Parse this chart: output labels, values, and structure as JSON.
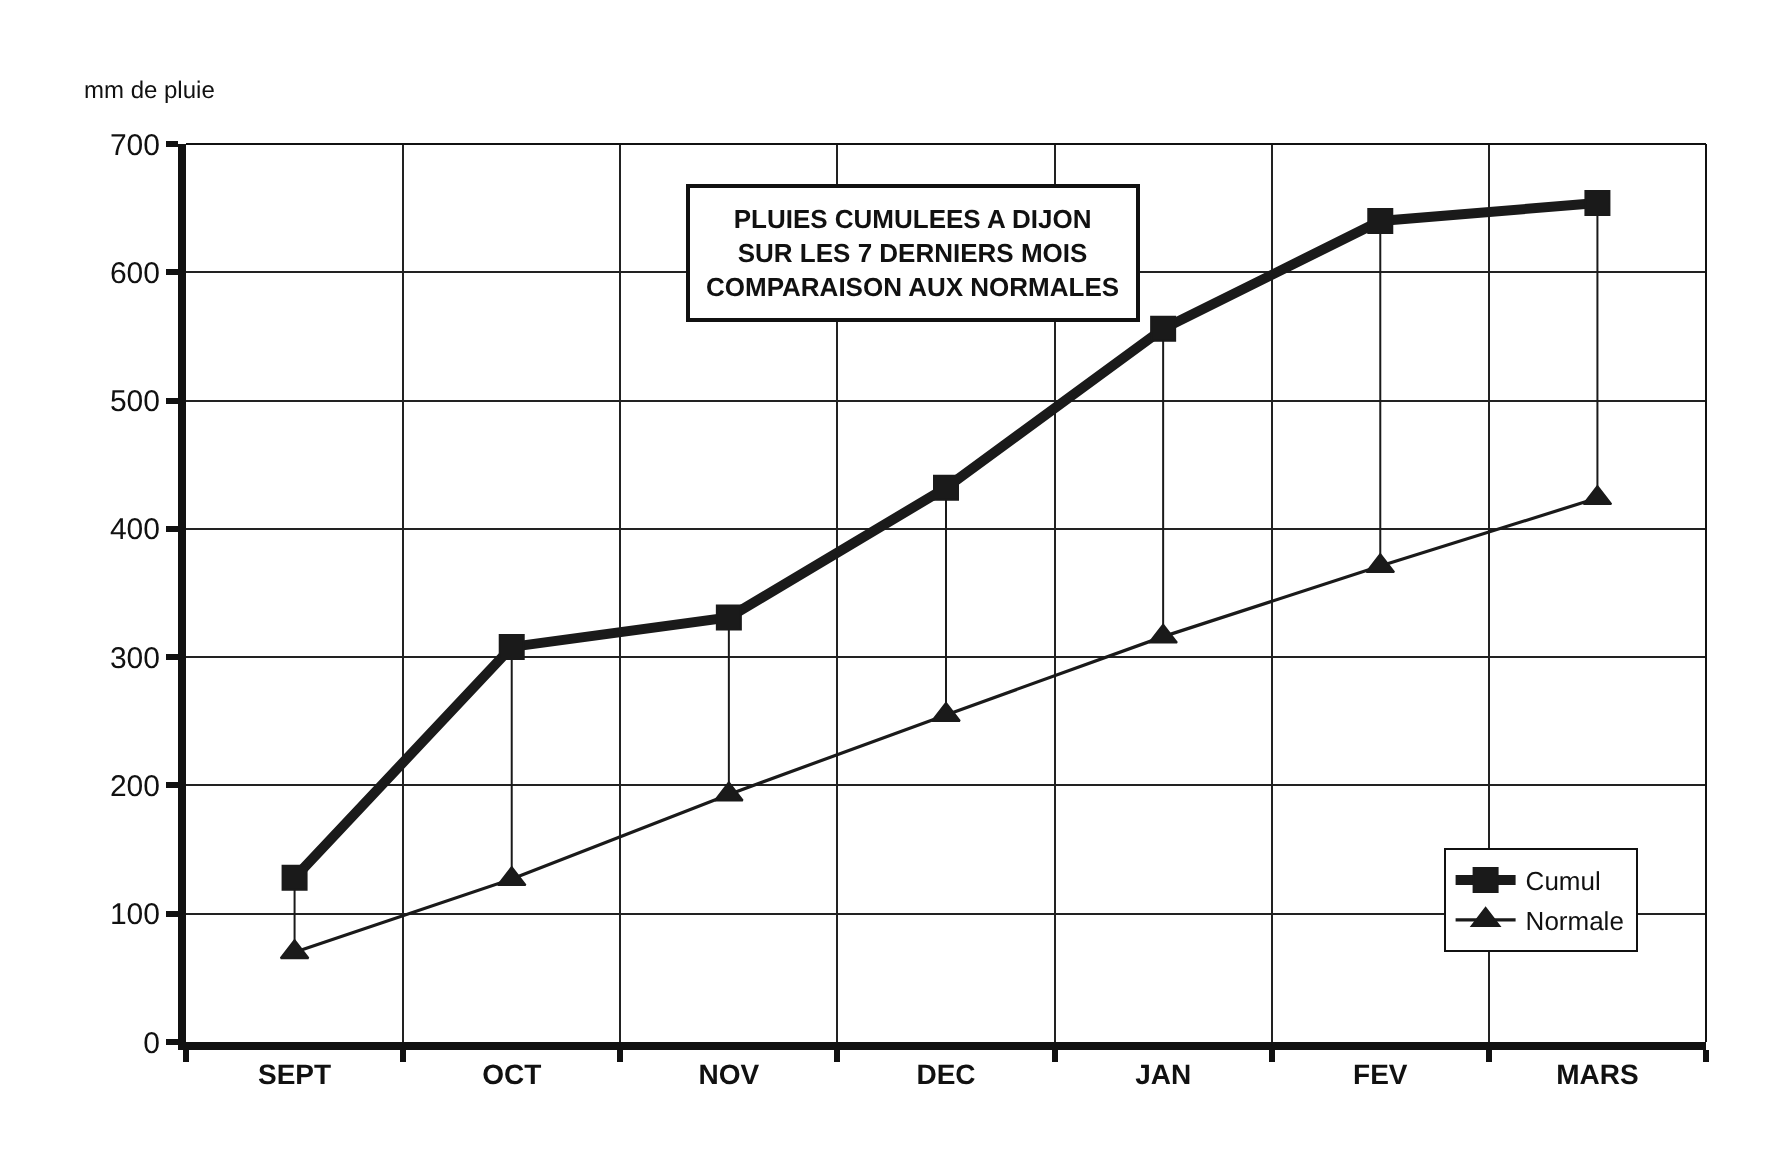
{
  "chart_data": {
    "type": "line",
    "title": "PLUIES CUMULEES A DIJON\nSUR LES 7 DERNIERS MOIS\nCOMPARAISON AUX NORMALES",
    "ylabel": "mm de pluie",
    "categories": [
      "SEPT",
      "OCT",
      "NOV",
      "DEC",
      "JAN",
      "FEV",
      "MARS"
    ],
    "series": [
      {
        "name": "Cumul",
        "color": "#1a1a1a",
        "marker": "square",
        "values": [
          128,
          308,
          331,
          432,
          556,
          640,
          654
        ],
        "errors": [
          [
            70,
            128
          ],
          [
            127,
            308
          ],
          [
            193,
            331
          ],
          [
            255,
            432
          ],
          [
            316,
            556
          ],
          [
            371,
            640
          ],
          [
            424,
            654
          ]
        ]
      },
      {
        "name": "Normale",
        "color": "#1a1a1a",
        "marker": "triangle",
        "values": [
          70,
          127,
          193,
          255,
          316,
          371,
          424
        ]
      }
    ],
    "ylim": [
      0,
      700
    ],
    "yticks": [
      0,
      100,
      200,
      300,
      400,
      500,
      600,
      700
    ],
    "grid": true,
    "legend": "bottom right"
  }
}
